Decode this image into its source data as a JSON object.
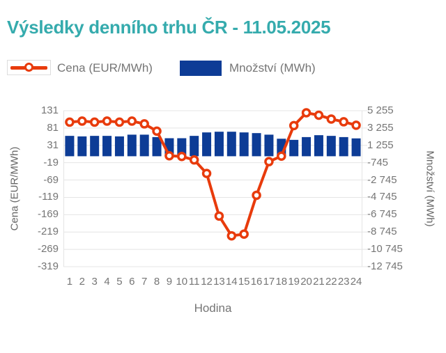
{
  "title": "Výsledky denního trhu ČR - 11.05.2025",
  "legend": [
    {
      "label": "Cena (EUR/MWh)",
      "type": "line"
    },
    {
      "label": "Množství (MWh)",
      "type": "bar"
    }
  ],
  "colors": {
    "title": "#35abad",
    "price_line": "#e83b0c",
    "quantity_bar": "#0d3c96",
    "tick_text": "#757575",
    "grid": "#e4e4e4"
  },
  "chart_data": {
    "type": "line+bar",
    "x": [
      1,
      2,
      3,
      4,
      5,
      6,
      7,
      8,
      9,
      10,
      11,
      12,
      13,
      14,
      15,
      16,
      17,
      18,
      19,
      20,
      21,
      22,
      23,
      24
    ],
    "xlabel": "Hodina",
    "grid": true,
    "legend_position": "top",
    "series": [
      {
        "name": "Cena (EUR/MWh)",
        "type": "line",
        "axis": "left",
        "values": [
          98,
          101,
          98,
          101,
          98,
          101,
          93,
          72,
          1,
          -1,
          -11,
          -50,
          -173,
          -230,
          -225,
          -113,
          -16,
          0,
          88,
          125,
          118,
          107,
          99,
          89
        ]
      },
      {
        "name": "Množství (MWh)",
        "type": "bar",
        "axis": "right",
        "values": [
          2350,
          2290,
          2350,
          2350,
          2290,
          2490,
          2490,
          2210,
          2080,
          2080,
          2350,
          2750,
          2830,
          2830,
          2750,
          2670,
          2490,
          2020,
          1890,
          2210,
          2430,
          2350,
          2210,
          2060
        ]
      }
    ],
    "left_axis": {
      "label": "Cena (EUR/MWh)",
      "ticks": [
        "131",
        "81",
        "31",
        "-19",
        "-69",
        "-119",
        "-169",
        "-219",
        "-269",
        "-319"
      ],
      "range": [
        -319,
        131
      ]
    },
    "right_axis": {
      "label": "Množství (MWh)",
      "ticks": [
        "5 255",
        "3 255",
        "1 255",
        "-745",
        "-2 745",
        "-4 745",
        "-6 745",
        "-8 745",
        "-10 745",
        "-12 745"
      ],
      "range": [
        -12745,
        5255
      ]
    }
  }
}
